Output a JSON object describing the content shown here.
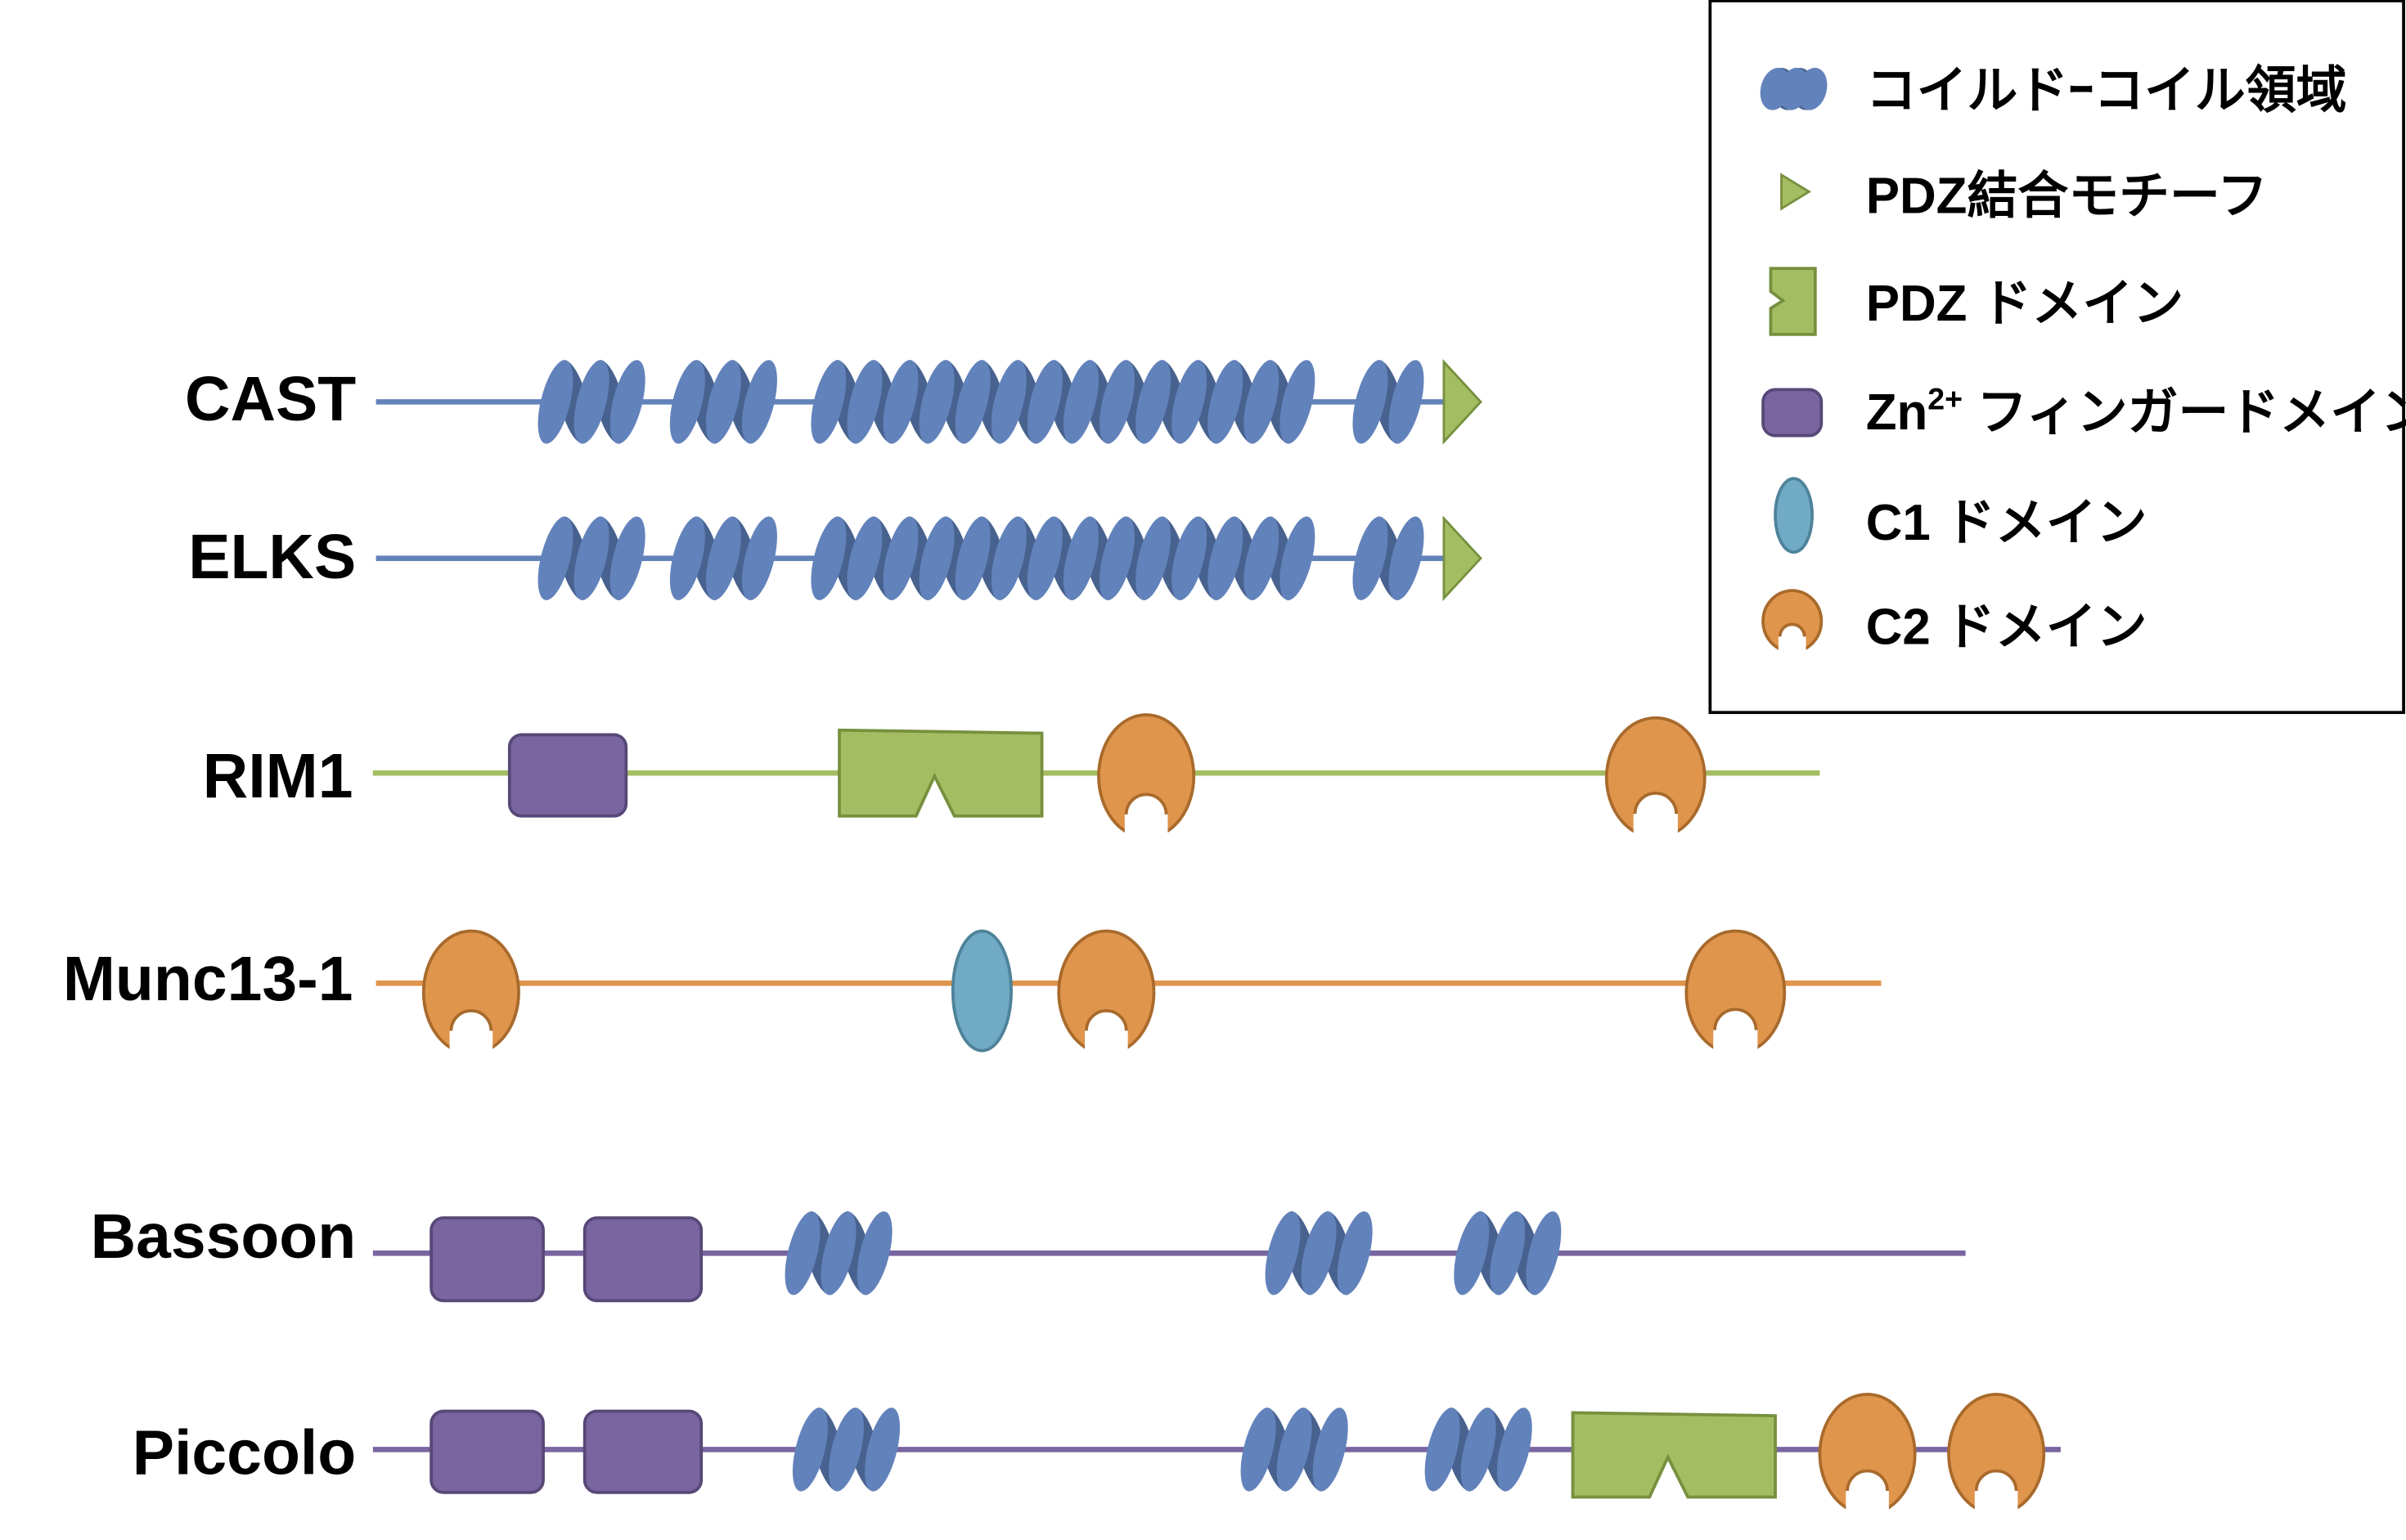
{
  "colors": {
    "coil_light": "#6282bb",
    "coil_dark": "#48628f",
    "pdz_fill": "#a5bd62",
    "pdz_stroke": "#76903e",
    "zn_fill": "#7965a0",
    "zn_stroke": "#574878",
    "c1_fill": "#70aac4",
    "c1_stroke": "#4e8299",
    "c2_fill": "#e0954c",
    "c2_stroke": "#a86a2c"
  },
  "proteins": [
    {
      "name": "CAST",
      "line_color": "#6282bb",
      "domains": [
        "coiled-coil",
        "coiled-coil",
        "coiled-coil",
        "coiled-coil",
        "pdz-binding-motif"
      ]
    },
    {
      "name": "ELKS",
      "line_color": "#6282bb",
      "domains": [
        "coiled-coil",
        "coiled-coil",
        "coiled-coil",
        "coiled-coil",
        "pdz-binding-motif"
      ]
    },
    {
      "name": "RIM1",
      "line_color": "#a5bd62",
      "domains": [
        "zn-finger",
        "pdz",
        "c2",
        "c2"
      ]
    },
    {
      "name": "Munc13-1",
      "line_color": "#e0954c",
      "domains": [
        "c2",
        "c1",
        "c2",
        "c2"
      ]
    },
    {
      "name": "Bassoon",
      "line_color": "#7965a0",
      "domains": [
        "zn-finger",
        "zn-finger",
        "coiled-coil",
        "coiled-coil",
        "coiled-coil"
      ]
    },
    {
      "name": "Piccolo",
      "line_color": "#7965a0",
      "domains": [
        "zn-finger",
        "zn-finger",
        "coiled-coil",
        "coiled-coil",
        "coiled-coil",
        "pdz",
        "c2",
        "c2"
      ]
    }
  ],
  "legend": {
    "items": [
      {
        "type": "coiled-coil",
        "label": "コイルドｰコイル領域"
      },
      {
        "type": "pdz-binding-motif",
        "label": "PDZ結合モチーフ"
      },
      {
        "type": "pdz",
        "label": "PDZ ドメイン"
      },
      {
        "type": "zn-finger",
        "label": "Zn",
        "sup": "2+",
        "label_rest": " フィンガードメイン"
      },
      {
        "type": "c1",
        "label": "C1 ドメイン"
      },
      {
        "type": "c2",
        "label": "C2 ドメイン"
      }
    ]
  }
}
